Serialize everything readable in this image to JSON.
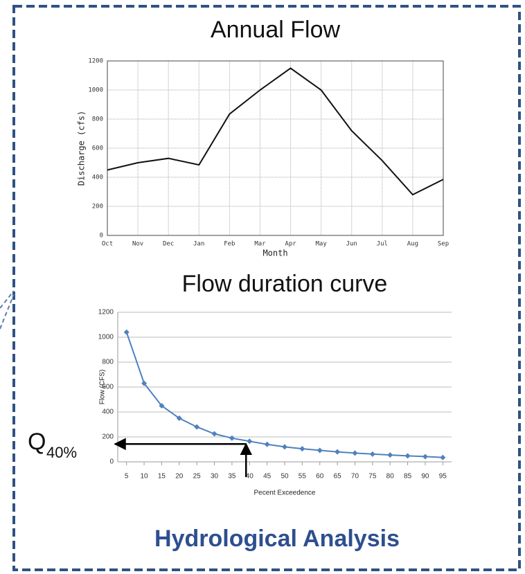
{
  "chart_data": [
    {
      "type": "line",
      "title": "Annual Flow",
      "categories": [
        "Oct",
        "Nov",
        "Dec",
        "Jan",
        "Feb",
        "Mar",
        "Apr",
        "May",
        "Jun",
        "Jul",
        "Aug",
        "Sep"
      ],
      "values": [
        450,
        500,
        530,
        485,
        835,
        1000,
        1150,
        1000,
        720,
        515,
        280,
        385
      ],
      "xlabel": "Month",
      "ylabel": "Discharge (cfs)",
      "color": "#111111",
      "ylim": [
        0,
        1200
      ],
      "yticks": [
        0,
        200,
        400,
        600,
        800,
        1000,
        1200
      ],
      "grid": true
    },
    {
      "type": "line",
      "title": "Flow duration curve",
      "x": [
        5,
        10,
        15,
        20,
        25,
        30,
        35,
        40,
        45,
        50,
        55,
        60,
        65,
        70,
        75,
        80,
        85,
        90,
        95
      ],
      "values": [
        1040,
        630,
        450,
        350,
        280,
        225,
        190,
        165,
        140,
        120,
        105,
        92,
        80,
        70,
        62,
        55,
        48,
        42,
        35
      ],
      "xlabel": "Pecent Exceedence",
      "ylabel": "Flow (CFS)",
      "color": "#4f81bd",
      "marker": "diamond",
      "xlim": [
        2.5,
        97.5
      ],
      "xticks": [
        5,
        10,
        15,
        20,
        25,
        30,
        35,
        40,
        45,
        50,
        55,
        60,
        65,
        70,
        75,
        80,
        85,
        90,
        95
      ],
      "ylim": [
        0,
        1200
      ],
      "yticks": [
        0,
        200,
        400,
        600,
        800,
        1000,
        1200
      ],
      "grid": true,
      "annotation": {
        "base": "Q",
        "sub": "40%"
      }
    }
  ],
  "footer": "Hydrological Analysis"
}
